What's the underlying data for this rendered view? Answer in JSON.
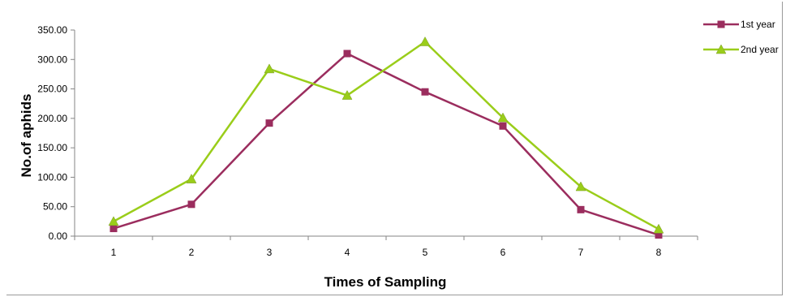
{
  "chart_data": {
    "type": "line",
    "categories": [
      "1",
      "2",
      "3",
      "4",
      "5",
      "6",
      "7",
      "8"
    ],
    "series": [
      {
        "name": "1st year",
        "values": [
          13,
          54,
          192,
          310,
          245,
          187,
          45,
          2
        ],
        "color": "#9B2D5E",
        "marker": "square"
      },
      {
        "name": "2nd year",
        "values": [
          25,
          97,
          284,
          239,
          330,
          201,
          84,
          12
        ],
        "color": "#9ACD1A",
        "marker": "triangle"
      }
    ],
    "title": "",
    "xlabel": "Times of Sampling",
    "ylabel": "No.of aphids",
    "ylim": [
      0,
      350
    ],
    "yticks": [
      "0.00",
      "50.00",
      "100.00",
      "150.00",
      "200.00",
      "250.00",
      "300.00",
      "350.00"
    ],
    "grid": false,
    "legend": "right"
  }
}
